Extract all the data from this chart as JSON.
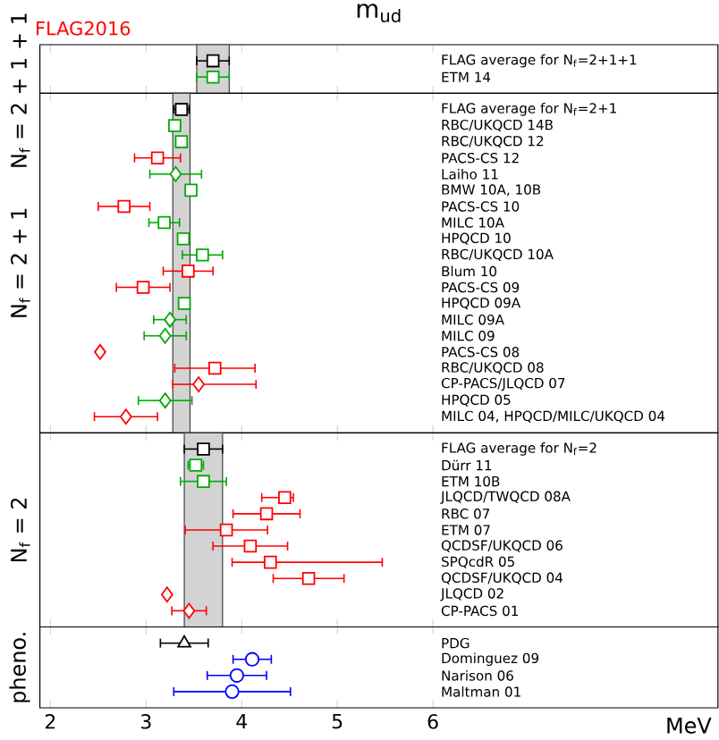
{
  "chart_data": [
    {
      "type": "scatter",
      "orientation": "horizontal",
      "title": "m$_{ud}$",
      "annotations": [
        "FLAG2016"
      ],
      "ylabel": "N$_{f}$ = 2 + 1 + 1",
      "categories": [
        "FLAG average for N$_{f}$=2+1+1",
        "ETM 14"
      ],
      "series": [
        {
          "color": "#000000",
          "marker": "square",
          "values": [
            3.7,
            null
          ],
          "errors": [
            0.17,
            null
          ]
        },
        {
          "color": "#00aa00",
          "marker": "square",
          "values": [
            null,
            3.7
          ],
          "errors": [
            null,
            0.17
          ]
        }
      ],
      "xlim": [
        1.89,
        8.98
      ],
      "xticks": [
        2,
        3,
        4,
        5,
        6
      ],
      "tick_labels": "y",
      "bands": [
        {
          "axis": "x",
          "from": 3.53,
          "to": 3.87,
          "color": "#d3d3d3"
        }
      ]
    },
    {
      "type": "scatter",
      "orientation": "horizontal",
      "ylabel": "N$_{f}$ = 2 + 1",
      "categories": [
        "FLAG average for N$_{f}$=2+1",
        "RBC/UKQCD 14B",
        "RBC/UKQCD 12",
        "PACS-CS 12",
        "Laiho 11",
        "BMW 10A, 10B",
        "PACS-CS 10",
        "MILC 10A",
        "HPQCD 10",
        "RBC/UKQCD 10A",
        "Blum 10",
        "PACS-CS 09",
        "HPQCD 09A",
        "MILC 09A",
        "MILC 09",
        "PACS-CS 08",
        "RBC/UKQCD 08",
        "CP-PACS/JLQCD 07",
        "HPQCD 05",
        "MILC 04, HPQCD/MILC/UKQCD 04"
      ],
      "series": [
        {
          "color": "#000000",
          "marker": "square",
          "values": [
            3.37,
            null,
            null,
            null,
            null,
            null,
            null,
            null,
            null,
            null,
            null,
            null,
            null,
            null,
            null,
            null,
            null,
            null,
            null,
            null
          ],
          "errors": [
            0.08,
            null,
            null,
            null,
            null,
            null,
            null,
            null,
            null,
            null,
            null,
            null,
            null,
            null,
            null,
            null,
            null,
            null,
            null,
            null
          ]
        },
        {
          "color": "#00aa00",
          "marker": "square",
          "values": [
            null,
            3.3,
            3.37,
            null,
            null,
            3.47,
            null,
            3.19,
            3.39,
            3.59,
            null,
            null,
            3.4,
            null,
            null,
            null,
            null,
            null,
            null,
            null
          ],
          "errors": [
            null,
            null,
            null,
            null,
            null,
            null,
            null,
            0.16,
            null,
            0.21,
            null,
            null,
            null,
            null,
            null,
            null,
            null,
            null,
            null,
            null
          ]
        },
        {
          "color": "#00aa00",
          "marker": "diamond",
          "values": [
            null,
            null,
            null,
            null,
            3.31,
            null,
            null,
            null,
            null,
            null,
            null,
            null,
            null,
            3.25,
            3.2,
            null,
            null,
            null,
            3.2,
            null
          ],
          "errors": [
            null,
            null,
            null,
            null,
            0.27,
            null,
            null,
            null,
            null,
            null,
            null,
            null,
            null,
            0.17,
            0.22,
            null,
            null,
            null,
            0.28,
            null
          ]
        },
        {
          "color": "#ff0000",
          "marker": "square",
          "values": [
            null,
            null,
            null,
            3.12,
            null,
            null,
            2.77,
            null,
            null,
            null,
            3.44,
            2.97,
            null,
            null,
            null,
            null,
            3.72,
            null,
            null,
            null
          ],
          "errors": [
            null,
            null,
            null,
            0.24,
            null,
            null,
            0.27,
            null,
            null,
            null,
            0.26,
            0.28,
            null,
            null,
            null,
            null,
            0.42,
            null,
            null,
            null
          ]
        },
        {
          "color": "#ff0000",
          "marker": "diamond",
          "values": [
            null,
            null,
            null,
            null,
            null,
            null,
            null,
            null,
            null,
            null,
            null,
            null,
            null,
            null,
            null,
            2.52,
            null,
            3.55,
            null,
            2.79
          ],
          "errors": [
            null,
            null,
            null,
            null,
            null,
            null,
            null,
            null,
            null,
            null,
            null,
            null,
            null,
            null,
            null,
            null,
            null,
            [
              3.28,
              4.15
            ],
            null,
            0.33
          ]
        }
      ],
      "xlim": [
        1.89,
        8.98
      ],
      "xticks": [
        2,
        3,
        4,
        5,
        6
      ],
      "tick_labels": "y",
      "bands": [
        {
          "axis": "x",
          "from": 3.28,
          "to": 3.46,
          "color": "#d3d3d3"
        }
      ]
    },
    {
      "type": "scatter",
      "orientation": "horizontal",
      "ylabel": "N$_{f}$ = 2",
      "categories": [
        "FLAG average for N$_{f}$=2",
        "Dürr 11",
        "ETM 10B",
        "JLQCD/TWQCD 08A",
        "RBC 07",
        "ETM 07",
        "QCDSF/UKQCD 06",
        "SPQcdR 05",
        "QCDSF/UKQCD 04",
        "JLQCD 02",
        "CP-PACS 01"
      ],
      "series": [
        {
          "color": "#000000",
          "marker": "square",
          "values": [
            3.6,
            null,
            null,
            null,
            null,
            null,
            null,
            null,
            null,
            null,
            null
          ],
          "errors": [
            0.2,
            null,
            null,
            null,
            null,
            null,
            null,
            null,
            null,
            null,
            null
          ]
        },
        {
          "color": "#00aa00",
          "marker": "square",
          "values": [
            null,
            3.52,
            3.6,
            null,
            null,
            null,
            null,
            null,
            null,
            null,
            null
          ],
          "errors": [
            null,
            0.08,
            0.24,
            null,
            null,
            null,
            null,
            null,
            null,
            null,
            null
          ]
        },
        {
          "color": "#ff0000",
          "marker": "square",
          "values": [
            null,
            null,
            null,
            4.45,
            4.26,
            3.84,
            4.09,
            4.3,
            4.7,
            null,
            null
          ],
          "errors": [
            null,
            null,
            null,
            [
              4.21,
              4.54
            ],
            0.35,
            0.43,
            0.39,
            [
              3.9,
              5.47
            ],
            0.37,
            null,
            null
          ]
        },
        {
          "color": "#ff0000",
          "marker": "diamond",
          "values": [
            null,
            null,
            null,
            null,
            null,
            null,
            null,
            null,
            null,
            3.22,
            3.45
          ],
          "errors": [
            null,
            null,
            null,
            null,
            null,
            null,
            null,
            null,
            null,
            null,
            0.18
          ]
        }
      ],
      "xlim": [
        1.89,
        8.98
      ],
      "xticks": [
        2,
        3,
        4,
        5,
        6
      ],
      "tick_labels": "y",
      "bands": [
        {
          "axis": "x",
          "from": 3.4,
          "to": 3.8,
          "color": "#d3d3d3"
        }
      ]
    },
    {
      "type": "scatter",
      "orientation": "horizontal",
      "ylabel": "pheno.",
      "xlabel": "MeV",
      "categories": [
        "PDG",
        "Dominguez 09",
        "Narison 06",
        "Maltman 01"
      ],
      "series": [
        {
          "color": "#000000",
          "marker": "triangle",
          "values": [
            3.4,
            null,
            null,
            null
          ],
          "errors": [
            0.25,
            null,
            null,
            null
          ]
        },
        {
          "color": "#0000ff",
          "marker": "circle",
          "values": [
            null,
            4.11,
            3.95,
            3.9
          ],
          "errors": [
            null,
            0.2,
            0.31,
            0.61
          ]
        }
      ],
      "xlim": [
        1.89,
        8.98
      ],
      "xticks": [
        2,
        3,
        4,
        5,
        6
      ]
    }
  ]
}
